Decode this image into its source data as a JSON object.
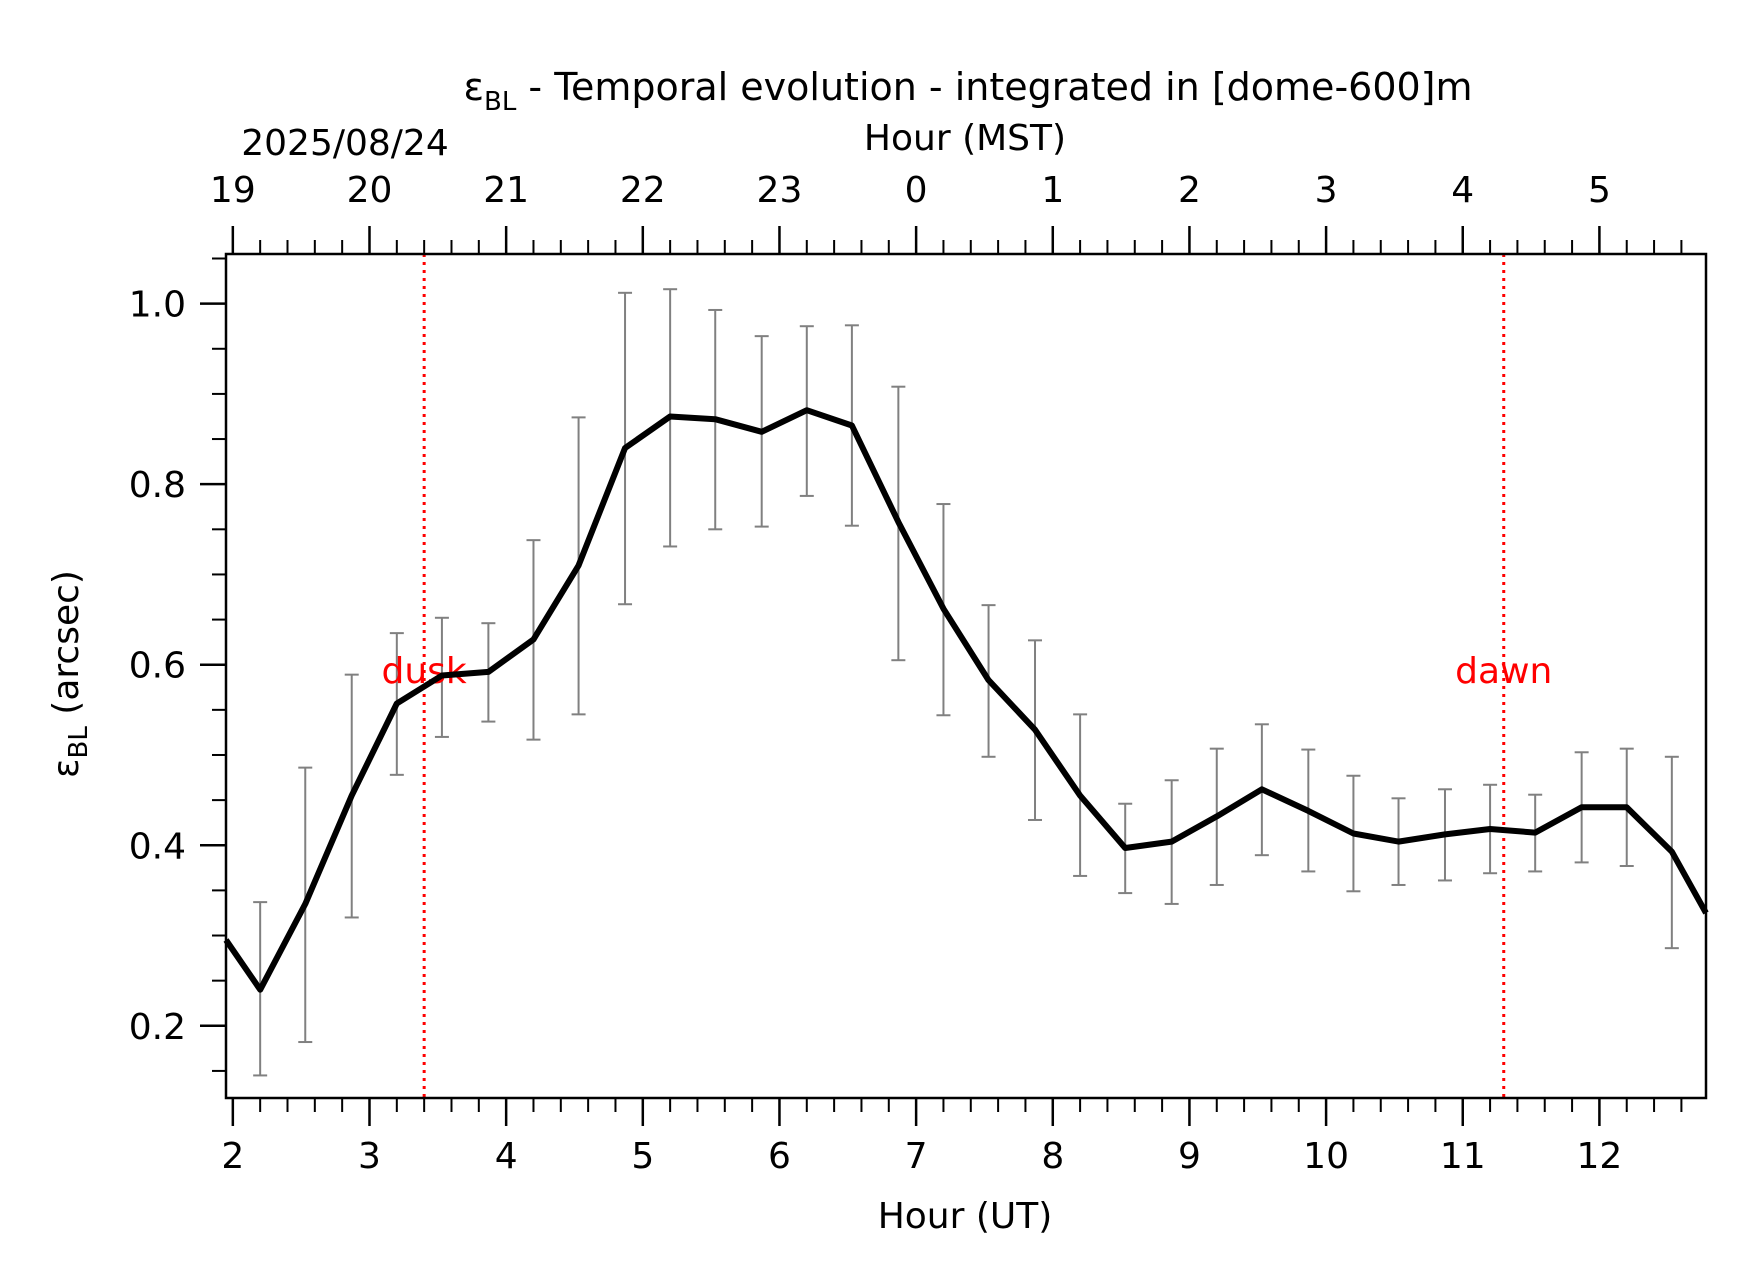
{
  "chart_data": {
    "type": "line",
    "title_main": "ε",
    "title_sub": "BL",
    "title_rest": " - Temporal evolution - integrated in [dome-600]m",
    "date_label": "2025/08/24",
    "top_axis_label": "Hour (MST)",
    "xlabel": "Hour (UT)",
    "ylabel_main": "ε",
    "ylabel_sub": "BL",
    "ylabel_rest": " (arcsec)",
    "xlim": [
      1.95,
      12.78
    ],
    "ylim": [
      0.12,
      1.055
    ],
    "x_ticks": [
      2,
      3,
      4,
      5,
      6,
      7,
      8,
      9,
      10,
      11,
      12
    ],
    "x_tick_labels": [
      "2",
      "3",
      "4",
      "5",
      "6",
      "7",
      "8",
      "9",
      "10",
      "11",
      "12"
    ],
    "top_ticks_ut": [
      2,
      3,
      4,
      5,
      6,
      7,
      8,
      9,
      10,
      11,
      12
    ],
    "top_tick_labels": [
      "19",
      "20",
      "21",
      "22",
      "23",
      "0",
      "1",
      "2",
      "3",
      "4",
      "5"
    ],
    "y_ticks": [
      0.2,
      0.4,
      0.6,
      0.8,
      1.0
    ],
    "y_tick_labels": [
      "0.2",
      "0.4",
      "0.6",
      "0.8",
      "1.0"
    ],
    "y_minor_step": 0.05,
    "x_minor_step": 0.2,
    "series": [
      {
        "color": "#000000",
        "x": [
          1.95,
          2.2,
          2.53,
          2.87,
          3.2,
          3.53,
          3.87,
          4.2,
          4.53,
          4.87,
          5.2,
          5.53,
          5.87,
          6.2,
          6.53,
          6.87,
          7.2,
          7.53,
          7.87,
          8.2,
          8.53,
          8.87,
          9.2,
          9.53,
          9.87,
          10.2,
          10.53,
          10.87,
          11.2,
          11.53,
          11.87,
          12.2,
          12.53,
          12.78
        ],
        "y": [
          0.295,
          0.24,
          0.335,
          0.455,
          0.557,
          0.588,
          0.592,
          0.628,
          0.71,
          0.84,
          0.875,
          0.872,
          0.858,
          0.882,
          0.865,
          0.758,
          0.662,
          0.583,
          0.528,
          0.455,
          0.397,
          0.404,
          0.432,
          0.462,
          0.438,
          0.413,
          0.404,
          0.412,
          0.418,
          0.414,
          0.442,
          0.442,
          0.393,
          0.325
        ]
      }
    ],
    "error_bars": {
      "color": "#808080",
      "x": [
        2.2,
        2.53,
        2.87,
        3.2,
        3.53,
        3.87,
        4.2,
        4.53,
        4.87,
        5.2,
        5.53,
        5.87,
        6.2,
        6.53,
        6.87,
        7.2,
        7.53,
        7.87,
        8.2,
        8.53,
        8.87,
        9.2,
        9.53,
        9.87,
        10.2,
        10.53,
        10.87,
        11.2,
        11.53,
        11.87,
        12.2,
        12.53
      ],
      "low": [
        0.145,
        0.182,
        0.32,
        0.478,
        0.52,
        0.537,
        0.517,
        0.545,
        0.667,
        0.731,
        0.75,
        0.753,
        0.787,
        0.754,
        0.605,
        0.544,
        0.498,
        0.428,
        0.366,
        0.347,
        0.335,
        0.356,
        0.389,
        0.371,
        0.349,
        0.356,
        0.361,
        0.369,
        0.371,
        0.381,
        0.377,
        0.286
      ],
      "high": [
        0.337,
        0.486,
        0.589,
        0.635,
        0.652,
        0.646,
        0.738,
        0.874,
        1.012,
        1.016,
        0.993,
        0.964,
        0.975,
        0.976,
        0.908,
        0.778,
        0.666,
        0.627,
        0.545,
        0.446,
        0.472,
        0.507,
        0.534,
        0.506,
        0.477,
        0.452,
        0.462,
        0.467,
        0.456,
        0.503,
        0.507,
        0.498
      ]
    },
    "vlines": [
      {
        "x": 3.4,
        "label": "dusk",
        "color": "#ff0000",
        "label_y": 0.58
      },
      {
        "x": 11.3,
        "label": "dawn",
        "color": "#ff0000",
        "label_y": 0.58
      }
    ],
    "grid": false,
    "legend": "none"
  }
}
